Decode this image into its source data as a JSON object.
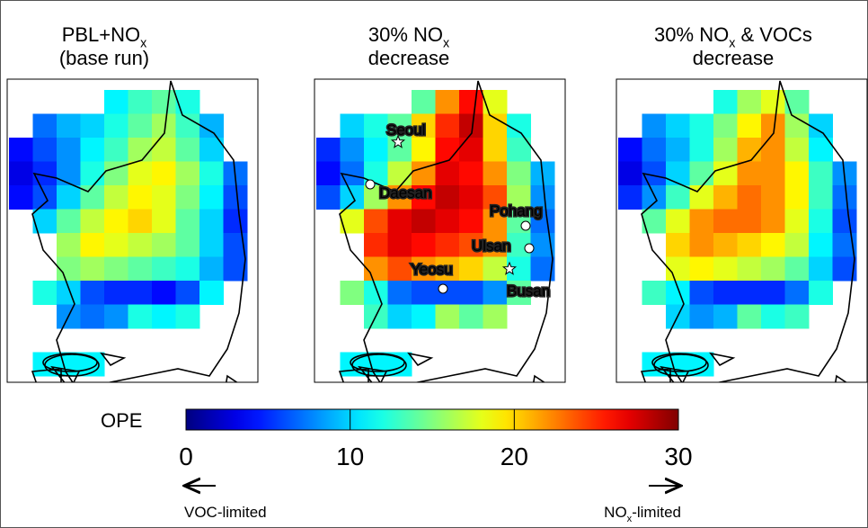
{
  "panels": [
    {
      "title_lines": [
        [
          {
            "text": "PBL+NO"
          },
          {
            "text": "x",
            "sub": true
          }
        ],
        [
          {
            "text": "(base run)"
          }
        ]
      ],
      "grid": [
        [
          null,
          null,
          null,
          null,
          11,
          13,
          14,
          12,
          null,
          null
        ],
        [
          null,
          7,
          9,
          10,
          12,
          14,
          16,
          13,
          9,
          null
        ],
        [
          4,
          6,
          8,
          11,
          13,
          16,
          17,
          14,
          10,
          null
        ],
        [
          3,
          5,
          8,
          12,
          15,
          18,
          19,
          16,
          12,
          7
        ],
        [
          4,
          6,
          10,
          14,
          17,
          19,
          18,
          15,
          11,
          6
        ],
        [
          null,
          10,
          14,
          17,
          19,
          20,
          18,
          14,
          10,
          5
        ],
        [
          null,
          null,
          16,
          19,
          18,
          17,
          16,
          14,
          10,
          6
        ],
        [
          null,
          null,
          15,
          16,
          15,
          14,
          13,
          12,
          9,
          6
        ],
        [
          null,
          12,
          10,
          6,
          5,
          5,
          4,
          6,
          11,
          null
        ],
        [
          null,
          null,
          8,
          7,
          8,
          12,
          11,
          12,
          null,
          null
        ],
        [
          null,
          null,
          null,
          null,
          null,
          null,
          null,
          null,
          null,
          null
        ],
        [
          null,
          11,
          11,
          11,
          null,
          null,
          null,
          null,
          null,
          null
        ]
      ]
    },
    {
      "title_lines": [
        [
          {
            "text": "30% NO"
          },
          {
            "text": "x",
            "sub": true
          }
        ],
        [
          {
            "text": "decrease"
          }
        ]
      ],
      "grid": [
        [
          null,
          null,
          null,
          null,
          14,
          22,
          26,
          18,
          null,
          null
        ],
        [
          null,
          10,
          12,
          14,
          20,
          25,
          28,
          20,
          12,
          null
        ],
        [
          5,
          8,
          11,
          14,
          19,
          26,
          27,
          20,
          13,
          null
        ],
        [
          4,
          7,
          12,
          17,
          22,
          27,
          26,
          22,
          15,
          9
        ],
        [
          6,
          10,
          16,
          22,
          26,
          28,
          27,
          24,
          16,
          8
        ],
        [
          null,
          18,
          24,
          27,
          28,
          27,
          26,
          22,
          14,
          7
        ],
        [
          null,
          null,
          25,
          27,
          26,
          25,
          24,
          22,
          13,
          8
        ],
        [
          null,
          null,
          22,
          24,
          22,
          21,
          20,
          17,
          12,
          7
        ],
        [
          null,
          15,
          12,
          7,
          6,
          6,
          6,
          8,
          14,
          null
        ],
        [
          null,
          null,
          13,
          10,
          11,
          16,
          14,
          16,
          null,
          null
        ],
        [
          null,
          null,
          null,
          null,
          null,
          null,
          null,
          null,
          null,
          null
        ],
        [
          null,
          11,
          11,
          11,
          null,
          null,
          null,
          null,
          null,
          null
        ]
      ]
    },
    {
      "title_lines": [
        [
          {
            "text": "30% NO"
          },
          {
            "text": "x",
            "sub": true
          },
          {
            "text": " & VOCs"
          }
        ],
        [
          {
            "text": "decrease"
          }
        ]
      ],
      "grid": [
        [
          null,
          null,
          null,
          null,
          12,
          16,
          18,
          14,
          null,
          null
        ],
        [
          null,
          8,
          10,
          12,
          15,
          19,
          22,
          16,
          10,
          null
        ],
        [
          4,
          7,
          9,
          12,
          16,
          21,
          22,
          17,
          11,
          null
        ],
        [
          3,
          6,
          10,
          14,
          18,
          22,
          22,
          19,
          13,
          8
        ],
        [
          5,
          8,
          13,
          18,
          21,
          23,
          22,
          19,
          13,
          7
        ],
        [
          null,
          14,
          18,
          22,
          23,
          23,
          22,
          18,
          12,
          6
        ],
        [
          null,
          null,
          20,
          22,
          21,
          20,
          19,
          17,
          11,
          7
        ],
        [
          null,
          null,
          18,
          19,
          18,
          17,
          16,
          14,
          10,
          6
        ],
        [
          null,
          13,
          11,
          6,
          5,
          5,
          5,
          7,
          12,
          null
        ],
        [
          null,
          null,
          10,
          8,
          9,
          14,
          12,
          13,
          null,
          null
        ],
        [
          null,
          null,
          null,
          null,
          null,
          null,
          null,
          null,
          null,
          null
        ],
        [
          null,
          11,
          11,
          11,
          null,
          null,
          null,
          null,
          null,
          null
        ]
      ]
    }
  ],
  "cities": [
    {
      "name": "Seoul",
      "marker": "star"
    },
    {
      "name": "Daesan",
      "marker": "circle"
    },
    {
      "name": "Pohang",
      "marker": "circle"
    },
    {
      "name": "Ulsan",
      "marker": "circle"
    },
    {
      "name": "Yeosu",
      "marker": "circle"
    },
    {
      "name": "Busan",
      "marker": "star"
    }
  ],
  "colorbar": {
    "label": "OPE",
    "colormap": "jet",
    "lim": [
      0,
      30
    ],
    "ticks": [
      0,
      10,
      20,
      30
    ],
    "left_note": [
      {
        "text": "VOC-limited"
      }
    ],
    "right_note": [
      {
        "text": "NO"
      },
      {
        "text": "x",
        "sub": true
      },
      {
        "text": "-limited"
      }
    ]
  }
}
